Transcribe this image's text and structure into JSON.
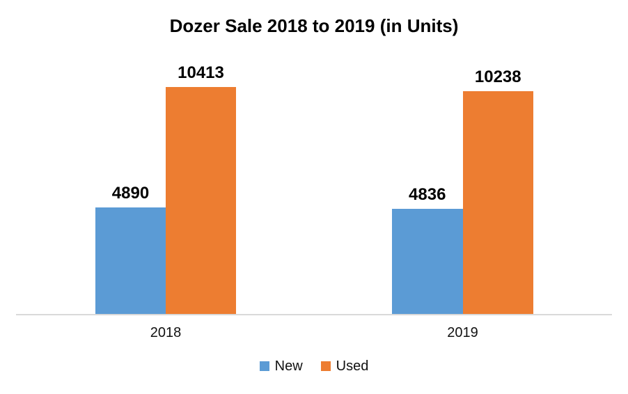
{
  "chart_data": {
    "type": "bar",
    "title": "Dozer Sale 2018 to 2019 (in Units)",
    "categories": [
      "2018",
      "2019"
    ],
    "series": [
      {
        "name": "New",
        "color": "#5B9BD5",
        "values": [
          4890,
          4836
        ]
      },
      {
        "name": "Used",
        "color": "#ED7D31",
        "values": [
          10413,
          10238
        ]
      }
    ],
    "xlabel": "",
    "ylabel": "",
    "ylim": [
      0,
      11600
    ],
    "grid": false,
    "data_labels": true,
    "legend_position": "bottom",
    "axis_line_color": "#D9D9D9",
    "background_color": "#FFFFFF"
  }
}
